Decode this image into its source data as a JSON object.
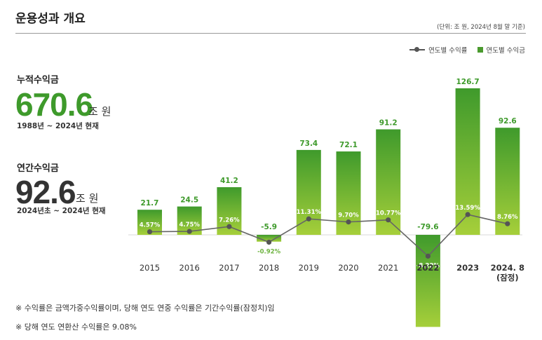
{
  "page": {
    "title": "운용성과 개요",
    "unit_note": "(단위: 조 원, 2024년 8월 말 기준)"
  },
  "legend": {
    "line_label": "연도별 수익률",
    "bar_label": "연도별 수익금"
  },
  "summary": {
    "cumulative": {
      "label": "누적수익금",
      "value": "670.6",
      "unit": "조 원",
      "period": "1988년 ~ 2024년 현재"
    },
    "annual": {
      "label": "연간수익금",
      "value": "92.6",
      "unit": "조 원",
      "period": "2024년초 ~ 2024년 현재"
    }
  },
  "footnotes": [
    "※ 수익률은 금액가중수익률이며, 당해 연도 연중 수익률은 기간수익률(잠정치)임",
    "※ 당해 연도 연환산 수익률은 9.08%"
  ],
  "colors": {
    "bar_top": "#3f9a2c",
    "bar_bottom": "#a6cf3a",
    "line": "#666666",
    "marker": "#555555"
  },
  "chart_data": {
    "type": "bar",
    "categories": [
      "2015",
      "2016",
      "2017",
      "2018",
      "2019",
      "2020",
      "2021",
      "2022",
      "2023",
      "2024. 8\n(잠정)"
    ],
    "series": [
      {
        "name": "연도별 수익금",
        "type": "bar",
        "values": [
          21.7,
          24.5,
          41.2,
          -5.9,
          73.4,
          72.1,
          91.2,
          -79.6,
          126.7,
          92.6
        ],
        "labels": [
          "21.7",
          "24.5",
          "41.2",
          "-5.9",
          "73.4",
          "72.1",
          "91.2",
          "-79.6",
          "126.7",
          "92.6"
        ]
      },
      {
        "name": "연도별 수익률",
        "type": "line",
        "values": [
          4.57,
          4.75,
          7.26,
          -0.92,
          11.31,
          9.7,
          10.77,
          -8.22,
          13.59,
          8.76
        ],
        "labels": [
          "4.57%",
          "4.75%",
          "7.26%",
          "-0.92%",
          "11.31%",
          "9.70%",
          "10.77%",
          "-8.22%",
          "13.59%",
          "8.76%"
        ]
      }
    ],
    "bold_categories": [
      "2022",
      "2023",
      "2024. 8\n(잠정)"
    ]
  }
}
